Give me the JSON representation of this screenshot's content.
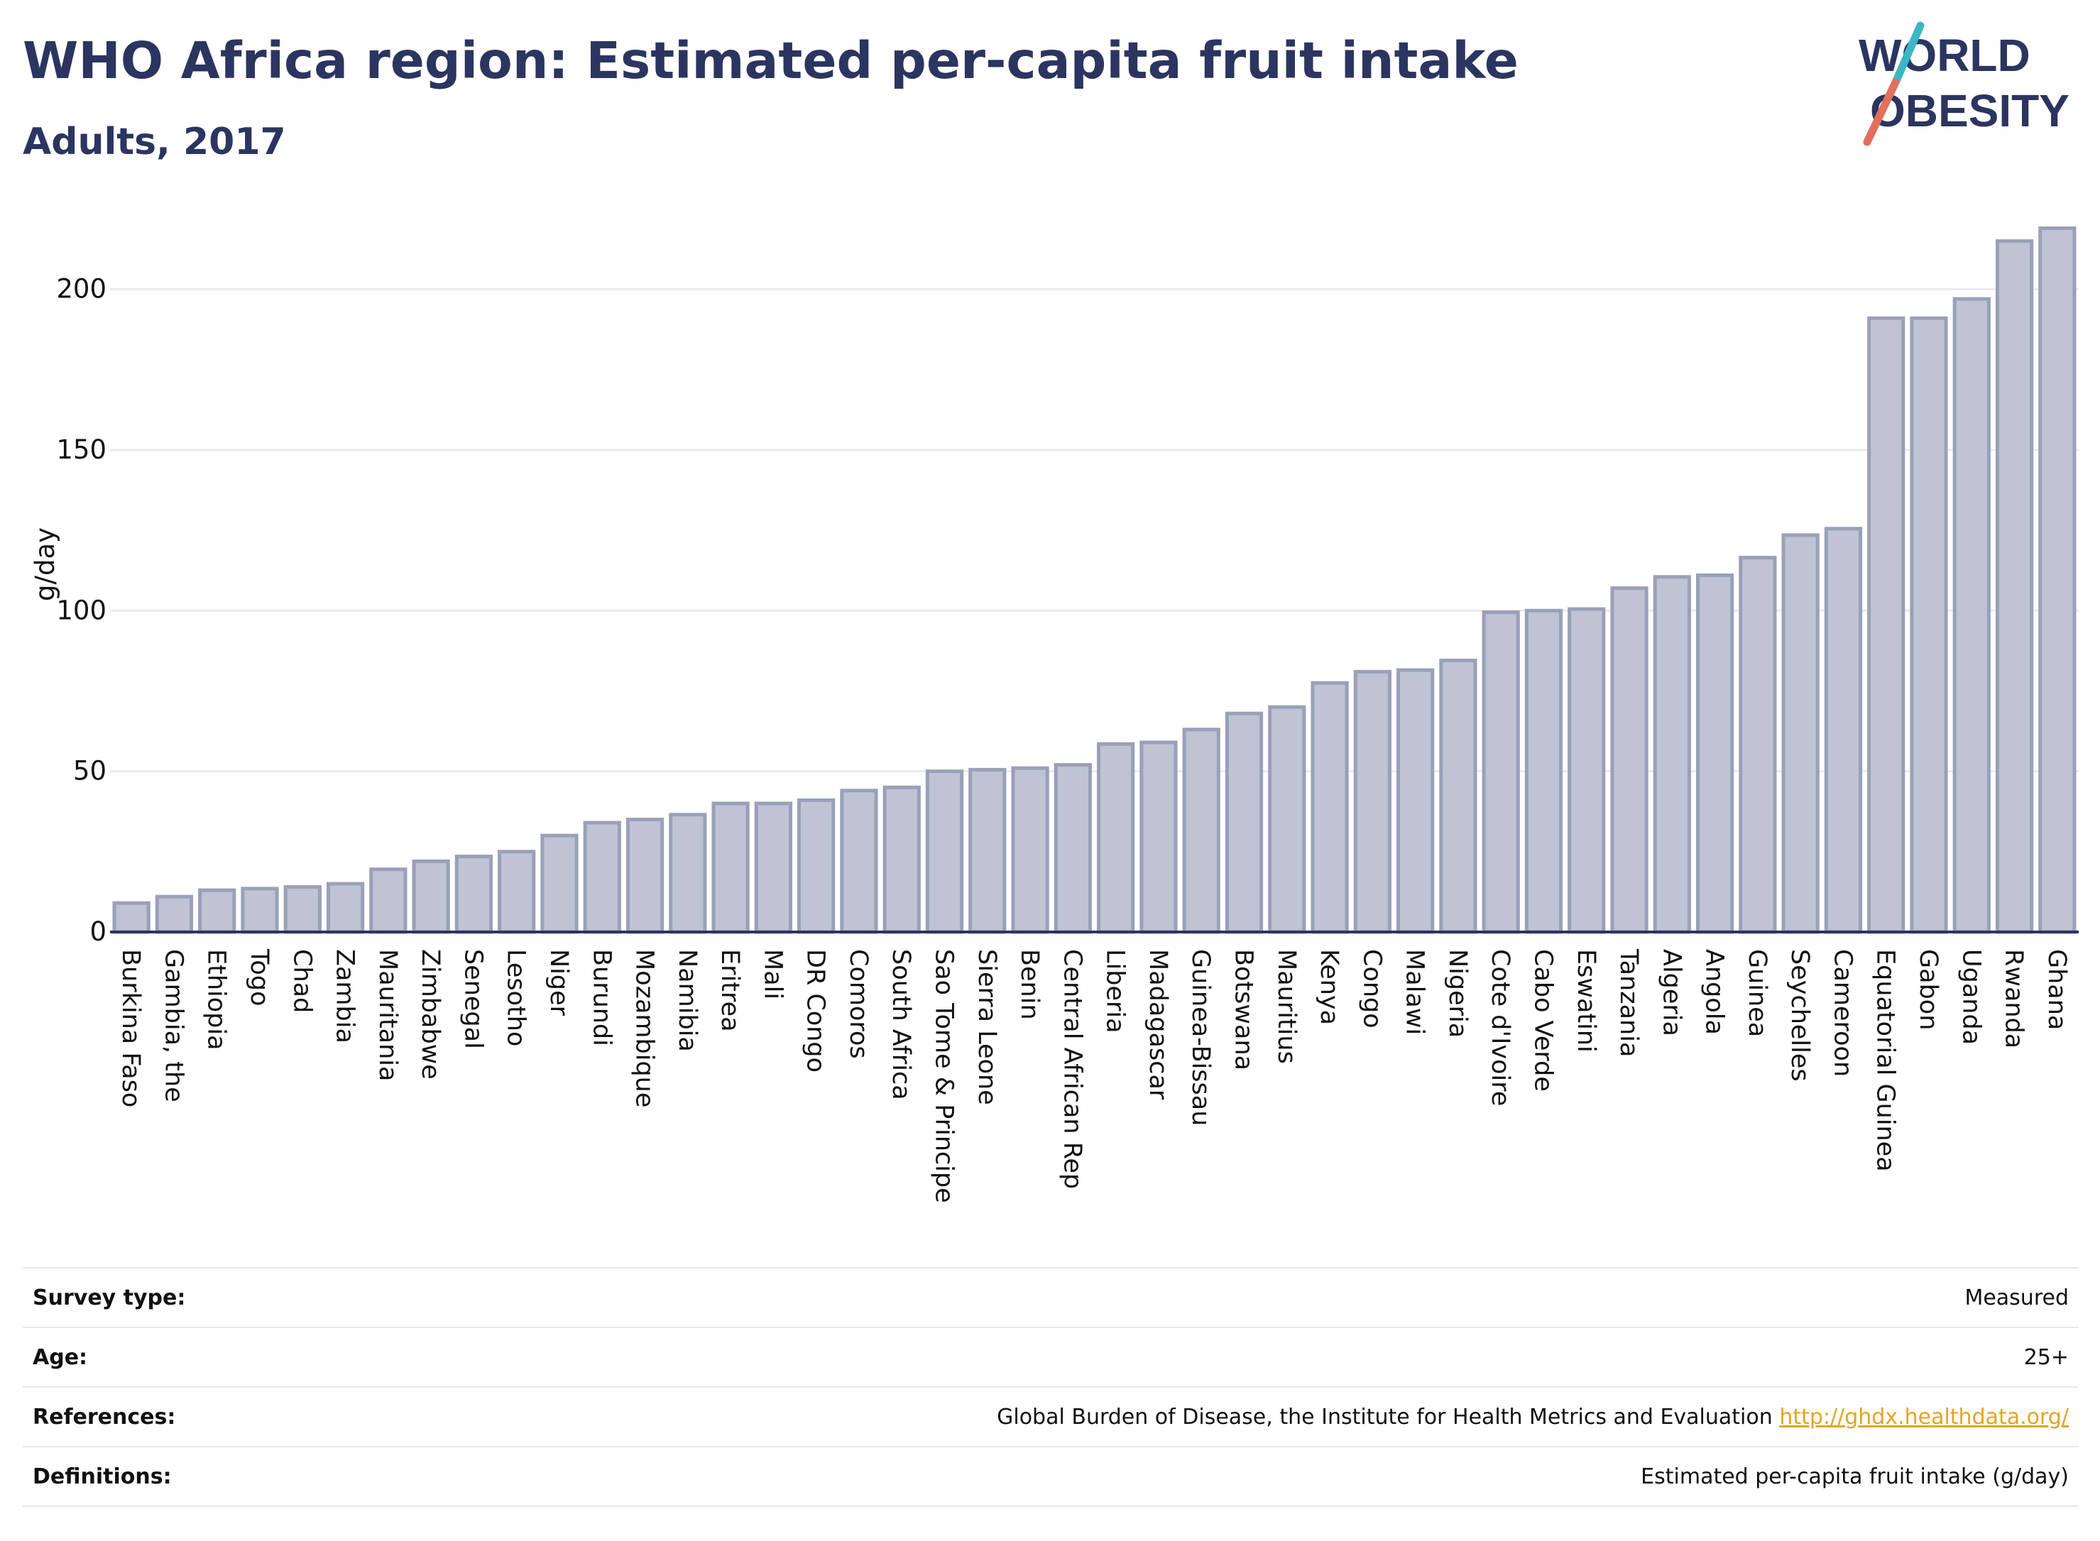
{
  "header": {
    "title": "WHO Africa region: Estimated per-capita fruit intake",
    "subtitle": "Adults, 2017"
  },
  "logo": {
    "line1": "WORLD",
    "line2": "OBESITY",
    "colors": {
      "text": "#2b3560",
      "slash_top": "#3bb7c4",
      "slash_bottom": "#e36f5e"
    }
  },
  "colors": {
    "bar_fill": "#bfc3d3",
    "bar_stroke": "#9aa0b8",
    "axis": "#2b3560",
    "grid": "#e9eaee",
    "link": "#e3a51f"
  },
  "chart_data": {
    "type": "bar",
    "ylabel": "g/day",
    "ylim": [
      0,
      220
    ],
    "yticks": [
      0,
      50,
      100,
      150,
      200
    ],
    "grid": true,
    "categories": [
      "Burkina Faso",
      "Gambia, the",
      "Ethiopia",
      "Togo",
      "Chad",
      "Zambia",
      "Mauritania",
      "Zimbabwe",
      "Senegal",
      "Lesotho",
      "Niger",
      "Burundi",
      "Mozambique",
      "Namibia",
      "Eritrea",
      "Mali",
      "DR Congo",
      "Comoros",
      "South Africa",
      "Sao Tome & Principe",
      "Sierra Leone",
      "Benin",
      "Central African Rep",
      "Liberia",
      "Madagascar",
      "Guinea-Bissau",
      "Botswana",
      "Mauritius",
      "Kenya",
      "Congo",
      "Malawi",
      "Nigeria",
      "Cote d'Ivoire",
      "Cabo Verde",
      "Eswatini",
      "Tanzania",
      "Algeria",
      "Angola",
      "Guinea",
      "Seychelles",
      "Cameroon",
      "Equatorial Guinea",
      "Gabon",
      "Uganda",
      "Rwanda",
      "Ghana"
    ],
    "values": [
      9,
      11,
      13,
      13.5,
      14,
      15,
      19.5,
      22,
      23.5,
      25,
      30,
      34,
      35,
      36.5,
      40,
      40,
      41,
      44,
      45,
      50,
      50.5,
      51,
      52,
      58.5,
      59,
      63,
      68,
      70,
      77.5,
      81,
      81.5,
      84.5,
      99.5,
      100,
      100.5,
      107,
      110.5,
      111,
      116.5,
      123.5,
      125.5,
      191,
      191,
      197,
      215,
      219
    ]
  },
  "meta": [
    {
      "label": "Survey type:",
      "value": "Measured"
    },
    {
      "label": "Age:",
      "value": "25+"
    },
    {
      "label": "References:",
      "value": "Global Burden of Disease, the Institute for Health Metrics and Evaluation",
      "link": "http://ghdx.healthdata.org/"
    },
    {
      "label": "Definitions:",
      "value": "Estimated per-capita fruit intake (g/day)"
    }
  ]
}
